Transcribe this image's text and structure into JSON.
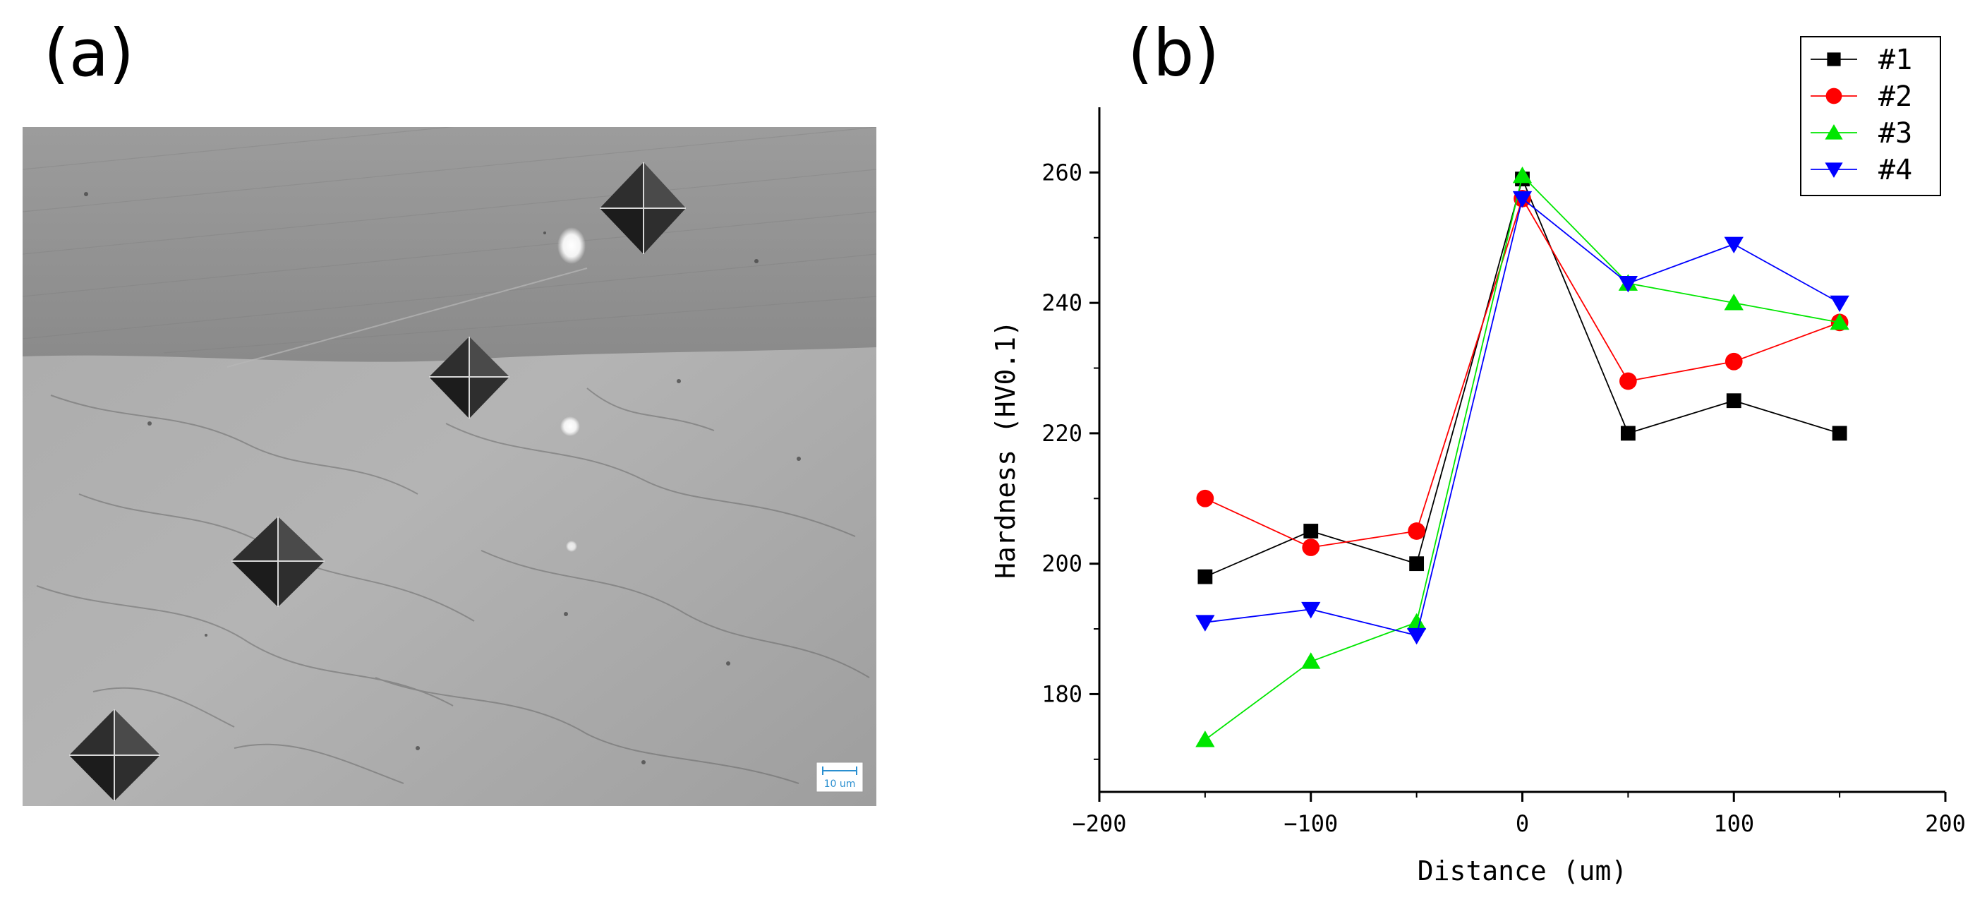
{
  "panels": {
    "a_label": "(a)",
    "b_label": "(b)"
  },
  "micrograph": {
    "scale_bar_label": "10 um"
  },
  "chart_data": {
    "type": "line",
    "xlabel": "Distance (um)",
    "ylabel": "Hardness (HV0.1)",
    "xlim": [
      -200,
      200
    ],
    "ylim": [
      165,
      270
    ],
    "x_ticks": [
      -200,
      -100,
      0,
      100,
      200
    ],
    "y_ticks": [
      180,
      200,
      220,
      240,
      260
    ],
    "x": [
      -150,
      -100,
      -50,
      0,
      50,
      100,
      150
    ],
    "legend_position": "top-right",
    "grid": false,
    "series": [
      {
        "name": "#1",
        "marker": "square",
        "color": "#000000",
        "values": [
          198,
          205,
          200,
          259,
          220,
          225,
          220
        ]
      },
      {
        "name": "#2",
        "marker": "circle",
        "color": "#ff0000",
        "values": [
          210,
          202.5,
          205,
          256,
          228,
          231,
          237
        ]
      },
      {
        "name": "#3",
        "marker": "triangle-up",
        "color": "#00e600",
        "values": [
          173,
          185,
          191,
          259.5,
          243,
          240,
          237
        ]
      },
      {
        "name": "#4",
        "marker": "triangle-down",
        "color": "#0000ff",
        "values": [
          191,
          193,
          189,
          256,
          243,
          249,
          240
        ]
      }
    ]
  }
}
